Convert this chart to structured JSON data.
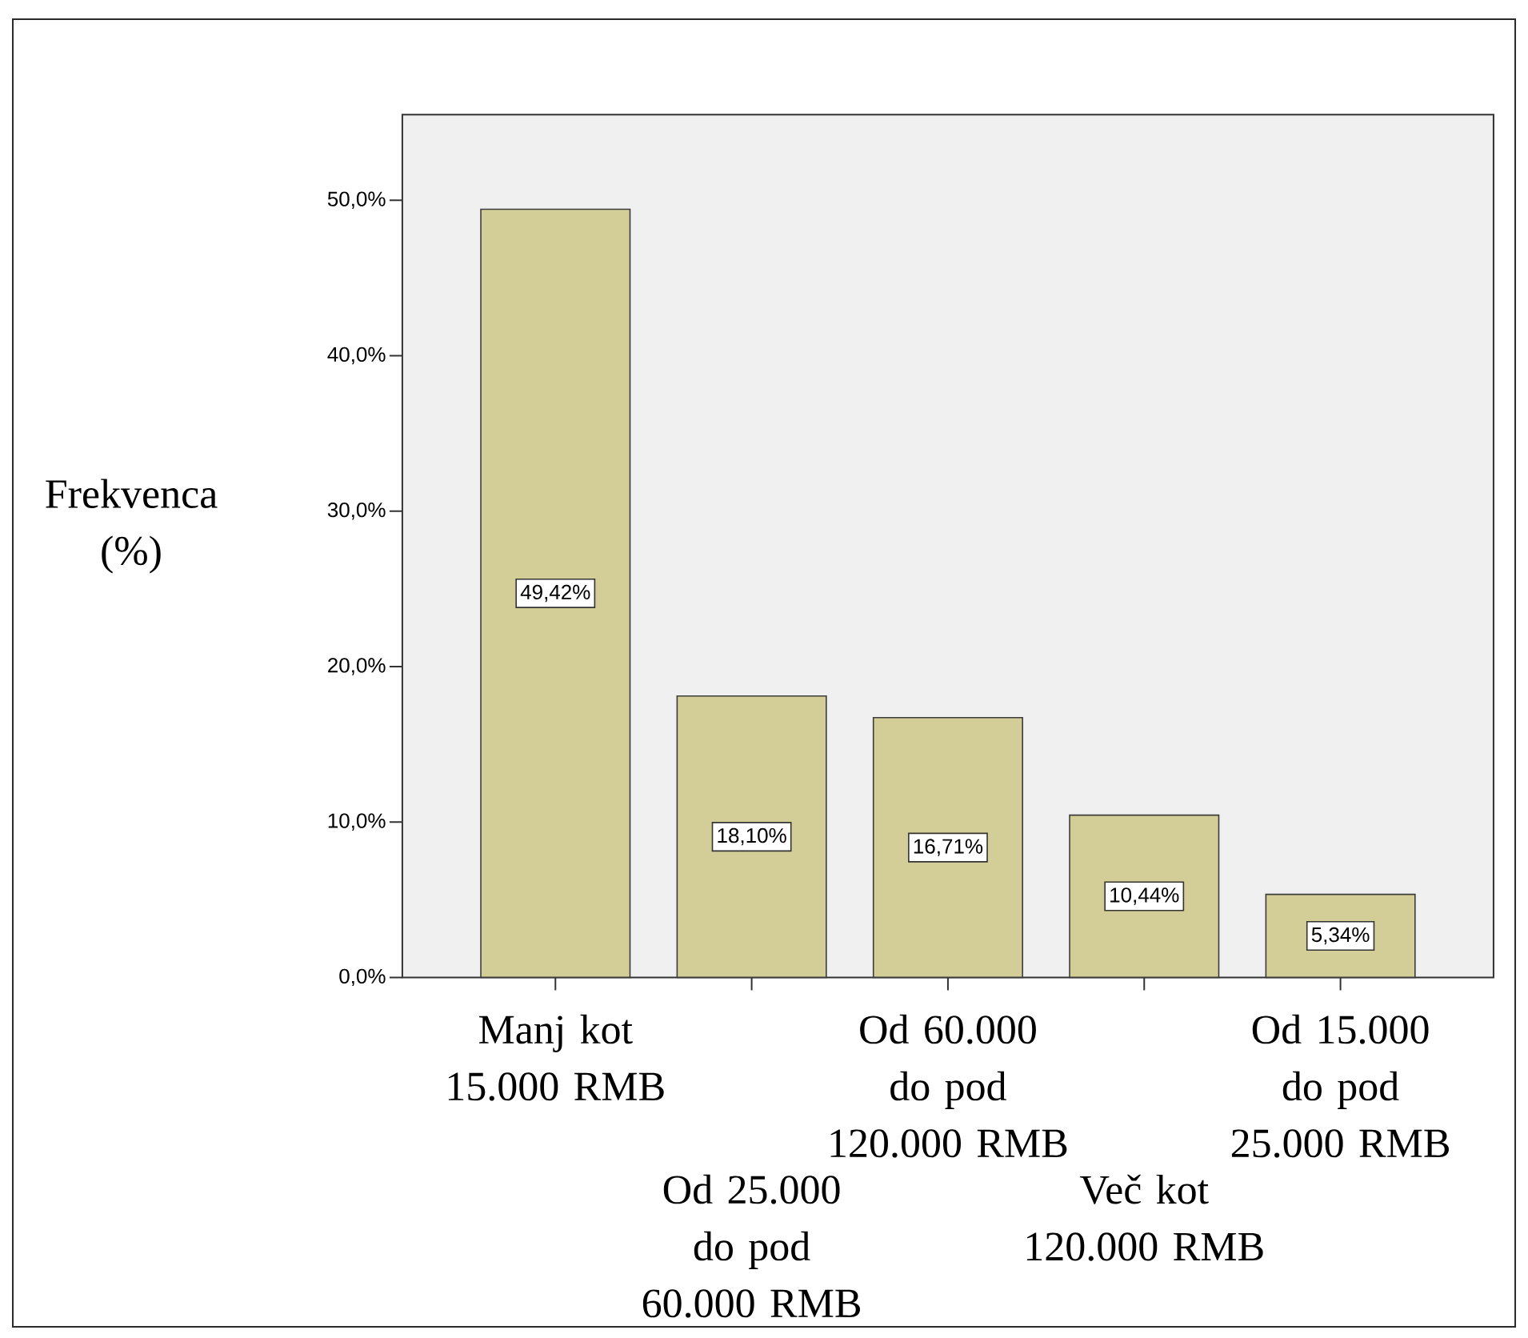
{
  "chart_data": {
    "type": "bar",
    "ylabel": "Frekvenca (%)",
    "categories": [
      "Manj kot 15.000 RMB",
      "Od 25.000 do pod 60.000 RMB",
      "Od 60.000 do pod 120.000 RMB",
      "Več kot 120.000 RMB",
      "Od 15.000 do pod 25.000 RMB"
    ],
    "values": [
      49.42,
      18.1,
      16.71,
      10.44,
      5.34
    ],
    "value_labels": [
      "49,42%",
      "18,10%",
      "16,71%",
      "10,44%",
      "5,34%"
    ],
    "color": "#d3ce97",
    "ylim": [
      0,
      55.5
    ],
    "yticks": [
      {
        "value": 0,
        "label": "0,0%"
      },
      {
        "value": 10,
        "label": "10,0%"
      },
      {
        "value": 20,
        "label": "20,0%"
      },
      {
        "value": 30,
        "label": "30,0%"
      },
      {
        "value": 40,
        "label": "40,0%"
      },
      {
        "value": 50,
        "label": "50,0%"
      }
    ]
  }
}
